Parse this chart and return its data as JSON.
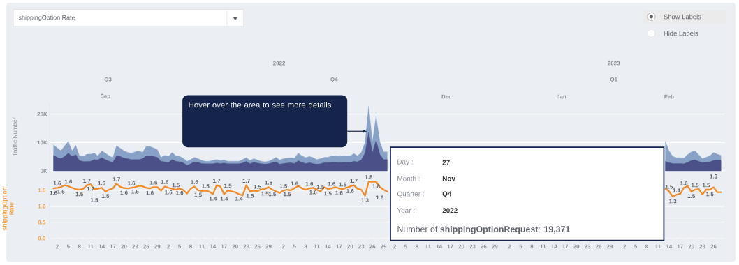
{
  "chart_data": [
    {
      "type": "area",
      "ylabel": "Traffic Number",
      "x": [
        "2022-09-01",
        "2022-09-02",
        "2022-09-03",
        "2022-09-04",
        "2022-09-05",
        "2022-09-06",
        "2022-09-07",
        "2022-09-08",
        "2022-09-09",
        "2022-09-10",
        "2022-09-11",
        "2022-09-12",
        "2022-09-13",
        "2022-09-14",
        "2022-09-15",
        "2022-09-16",
        "2022-09-17",
        "2022-09-18",
        "2022-09-19",
        "2022-09-20",
        "2022-09-21",
        "2022-09-22",
        "2022-09-23",
        "2022-09-24",
        "2022-09-25",
        "2022-09-26",
        "2022-09-27",
        "2022-09-28",
        "2022-09-29",
        "2022-09-30",
        "2022-10-01",
        "2022-10-02",
        "2022-10-03",
        "2022-10-04",
        "2022-10-05",
        "2022-10-06",
        "2022-10-07",
        "2022-10-08",
        "2022-10-09",
        "2022-10-10",
        "2022-10-11",
        "2022-10-12",
        "2022-10-13",
        "2022-10-14",
        "2022-10-15",
        "2022-10-16",
        "2022-10-17",
        "2022-10-18",
        "2022-10-19",
        "2022-10-20",
        "2022-10-21",
        "2022-10-22",
        "2022-10-23",
        "2022-10-24",
        "2022-10-25",
        "2022-10-26",
        "2022-10-27",
        "2022-10-28",
        "2022-10-29",
        "2022-10-30",
        "2022-10-31",
        "2022-11-01",
        "2022-11-02",
        "2022-11-03",
        "2022-11-04",
        "2022-11-05",
        "2022-11-06",
        "2022-11-07",
        "2022-11-08",
        "2022-11-09",
        "2022-11-10",
        "2022-11-11",
        "2022-11-12",
        "2022-11-13",
        "2022-11-14",
        "2022-11-15",
        "2022-11-16",
        "2022-11-17",
        "2022-11-18",
        "2022-11-19",
        "2022-11-20",
        "2022-11-21",
        "2022-11-22",
        "2022-11-23",
        "2022-11-24",
        "2022-11-25",
        "2022-11-26",
        "2022-11-27",
        "2022-11-28",
        "2022-11-29",
        "2022-11-30",
        "2022-12-01",
        "2023-02-13",
        "2023-02-14",
        "2023-02-15",
        "2023-02-16",
        "2023-02-17",
        "2023-02-18",
        "2023-02-19",
        "2023-02-20",
        "2023-02-21",
        "2023-02-22",
        "2023-02-23",
        "2023-02-24",
        "2023-02-25",
        "2023-02-26",
        "2023-02-27",
        "2023-02-28"
      ],
      "series": [
        {
          "color": "#87a2c6",
          "values": [
            9200,
            8100,
            7100,
            8800,
            10400,
            7100,
            9000,
            5300,
            5100,
            5900,
            5900,
            6300,
            5300,
            7100,
            6300,
            5300,
            4700,
            8900,
            8000,
            7100,
            6500,
            6300,
            6700,
            7100,
            6500,
            8600,
            8600,
            8100,
            7500,
            4800,
            5500,
            5100,
            6500,
            5300,
            5100,
            4500,
            3400,
            4000,
            4800,
            4300,
            3700,
            3400,
            3400,
            3700,
            4000,
            3700,
            3900,
            3400,
            3400,
            3400,
            3400,
            4000,
            4700,
            3700,
            4300,
            3900,
            3400,
            3200,
            3400,
            4000,
            4800,
            3900,
            4300,
            4500,
            4700,
            4500,
            6300,
            5300,
            4700,
            5100,
            4700,
            4000,
            4300,
            4800,
            4800,
            5300,
            5300,
            5100,
            5300,
            5300,
            5300,
            6100,
            5300,
            6500,
            10000,
            22900,
            10400,
            19371,
            10400,
            6700,
            6700,
            null,
            10400,
            7100,
            5100,
            4700,
            4700,
            4500,
            5700,
            6700,
            7100,
            5700,
            4300,
            4800,
            5300,
            6500,
            5900,
            5500
          ]
        },
        {
          "color": "#4b5088",
          "values": [
            5500,
            4800,
            4300,
            5100,
            6300,
            5100,
            5700,
            3700,
            3300,
            3300,
            3400,
            4000,
            3900,
            4700,
            4000,
            3400,
            3000,
            5300,
            5100,
            4500,
            4300,
            4000,
            4000,
            4000,
            4300,
            5300,
            5300,
            5100,
            4800,
            3400,
            3200,
            3000,
            4000,
            3400,
            3200,
            2900,
            2000,
            2500,
            3200,
            3000,
            2600,
            2500,
            2500,
            2500,
            2800,
            2600,
            2800,
            2500,
            2500,
            2500,
            2500,
            2800,
            3400,
            2500,
            3000,
            2800,
            2500,
            2400,
            2500,
            2900,
            3200,
            2400,
            2600,
            2800,
            2900,
            2600,
            3600,
            3000,
            2600,
            2900,
            2600,
            2400,
            2500,
            2900,
            2900,
            3000,
            3000,
            2900,
            3000,
            3000,
            3000,
            3400,
            3200,
            3900,
            6300,
            13700,
            6500,
            10800,
            5900,
            4000,
            4000,
            null,
            3400,
            2900,
            2600,
            2600,
            2600,
            2500,
            3000,
            3700,
            3900,
            3400,
            2900,
            3000,
            3200,
            3700,
            3700,
            3700
          ]
        }
      ],
      "xlim": [
        "2022-08-31",
        "2023-03-01"
      ],
      "ylim": [
        0,
        24000
      ],
      "yticks": [
        {
          "value": 0,
          "label": "0K"
        },
        {
          "value": 10000,
          "label": "10K"
        },
        {
          "value": 20000,
          "label": "20K"
        }
      ],
      "grid": "y",
      "tick_labels": "y",
      "x2lim": [
        "2022-08-31",
        "2023-03-01"
      ],
      "x2ticks": [
        {
          "value": "2022-09-15",
          "label": "Sep"
        },
        {
          "value": "2022-12-16",
          "label": "Dec"
        },
        {
          "value": "2023-01-16",
          "label": "Jan"
        },
        {
          "value": "2023-02-14",
          "label": "Feb"
        }
      ],
      "annotations": [
        "shippingOption Rate",
        "Show Labels",
        "Hide Labels",
        "Hover over the area to see more details",
        "Day :",
        "27",
        "Month :",
        "Nov",
        "Quarter :",
        "Q4",
        "Year :",
        "2022",
        "Number of **shippingOptionRequest**: **19,371**",
        "Q3",
        "Q4",
        "Q1",
        "2022",
        "2023"
      ]
    },
    {
      "type": "line",
      "ylabel": "shippingOption Rate",
      "color": "#f28c28",
      "x": [
        "2022-09-01",
        "2022-09-02",
        "2022-09-03",
        "2022-09-04",
        "2022-09-05",
        "2022-09-06",
        "2022-09-07",
        "2022-09-08",
        "2022-09-09",
        "2022-09-10",
        "2022-09-11",
        "2022-09-12",
        "2022-09-13",
        "2022-09-14",
        "2022-09-15",
        "2022-09-16",
        "2022-09-17",
        "2022-09-18",
        "2022-09-19",
        "2022-09-20",
        "2022-09-21",
        "2022-09-22",
        "2022-09-23",
        "2022-09-24",
        "2022-09-25",
        "2022-09-26",
        "2022-09-27",
        "2022-09-28",
        "2022-09-29",
        "2022-09-30",
        "2022-10-01",
        "2022-10-02",
        "2022-10-03",
        "2022-10-04",
        "2022-10-05",
        "2022-10-06",
        "2022-10-07",
        "2022-10-08",
        "2022-10-09",
        "2022-10-10",
        "2022-10-11",
        "2022-10-12",
        "2022-10-13",
        "2022-10-14",
        "2022-10-15",
        "2022-10-16",
        "2022-10-17",
        "2022-10-18",
        "2022-10-19",
        "2022-10-20",
        "2022-10-21",
        "2022-10-22",
        "2022-10-23",
        "2022-10-24",
        "2022-10-25",
        "2022-10-26",
        "2022-10-27",
        "2022-10-28",
        "2022-10-29",
        "2022-10-30",
        "2022-10-31",
        "2022-11-01",
        "2022-11-02",
        "2022-11-03",
        "2022-11-04",
        "2022-11-05",
        "2022-11-06",
        "2022-11-07",
        "2022-11-08",
        "2022-11-09",
        "2022-11-10",
        "2022-11-11",
        "2022-11-12",
        "2022-11-13",
        "2022-11-14",
        "2022-11-15",
        "2022-11-16",
        "2022-11-17",
        "2022-11-18",
        "2022-11-19",
        "2022-11-20",
        "2022-11-21",
        "2022-11-22",
        "2022-11-23",
        "2022-11-24",
        "2022-11-25",
        "2022-11-26",
        "2022-11-27",
        "2022-11-28",
        "2022-11-29",
        "2022-11-30",
        "2022-12-01",
        "2023-02-13",
        "2023-02-14",
        "2023-02-15",
        "2023-02-16",
        "2023-02-17",
        "2023-02-18",
        "2023-02-19",
        "2023-02-20",
        "2023-02-21",
        "2023-02-22",
        "2023-02-23",
        "2023-02-24",
        "2023-02-25",
        "2023-02-26",
        "2023-02-27",
        "2023-02-28"
      ],
      "values": [
        1.56,
        1.58,
        1.6,
        1.66,
        1.63,
        1.58,
        1.54,
        1.52,
        1.55,
        1.66,
        1.69,
        1.53,
        1.55,
        1.58,
        1.46,
        1.52,
        1.56,
        1.71,
        1.61,
        1.57,
        1.56,
        1.58,
        1.6,
        1.64,
        1.63,
        1.58,
        1.56,
        1.6,
        1.6,
        1.49,
        1.62,
        1.58,
        1.55,
        1.52,
        1.56,
        1.51,
        1.4,
        1.55,
        1.62,
        1.5,
        1.48,
        1.49,
        1.46,
        1.38,
        1.66,
        1.62,
        1.38,
        1.5,
        1.47,
        1.44,
        1.38,
        1.34,
        1.66,
        1.47,
        1.49,
        1.47,
        1.53,
        1.54,
        1.6,
        1.52,
        1.47,
        1.42,
        1.49,
        1.52,
        1.5,
        1.57,
        1.64,
        1.56,
        1.52,
        1.56,
        1.58,
        1.52,
        1.46,
        1.6,
        1.54,
        1.56,
        1.6,
        1.56,
        1.54,
        1.58,
        1.62,
        1.66,
        1.55,
        1.52,
        1.33,
        1.77,
        1.77,
        1.77,
        1.61,
        1.52,
        1.46,
        null,
        1.55,
        1.47,
        1.3,
        1.36,
        1.39,
        1.58,
        1.63,
        1.46,
        1.52,
        1.54,
        1.37,
        1.52,
        1.52,
        1.6,
        1.44,
        1.44
      ],
      "value_labels": [
        "1.6",
        "1.6",
        "1.6",
        null,
        "1.6",
        null,
        null,
        "1.5",
        null,
        "1.7",
        "1.7",
        "1.5",
        null,
        "1.6",
        "1.5",
        null,
        null,
        "1.7",
        null,
        "1.6",
        null,
        "1.6",
        "1.6",
        null,
        null,
        null,
        "1.6",
        "1.6",
        null,
        null,
        "1.6",
        "1.6",
        null,
        "1.5",
        "1.6",
        null,
        null,
        null,
        "1.6",
        "1.5",
        null,
        "1.5",
        null,
        "1.4",
        "1.7",
        null,
        "1.4",
        "1.5",
        null,
        null,
        "1.4",
        null,
        "1.7",
        "1.5",
        null,
        "1.5",
        null,
        "1.5",
        "1.6",
        "1.5",
        null,
        null,
        "1.5",
        "1.5",
        null,
        "1.6",
        null,
        null,
        null,
        "1.6",
        "1.6",
        null,
        "1.5",
        null,
        "1.5",
        "1.6",
        null,
        "1.6",
        "1.5",
        null,
        "1.6",
        "1.7",
        null,
        null,
        "1.3",
        "1.8",
        null,
        "1.8",
        "1.6",
        null,
        null,
        null,
        null,
        "1.5",
        "1.3",
        "1.4",
        null,
        "1.6",
        null,
        "1.5",
        "1.5",
        null,
        null,
        "1.5",
        "1.5",
        "1.6",
        null,
        null
      ],
      "xlim": [
        "2022-08-31",
        "2023-03-01"
      ],
      "ylim": [
        0,
        1.85
      ],
      "xticks": [
        {
          "value": "2022-09-02",
          "label": "2"
        },
        {
          "value": "2022-09-05",
          "label": "5"
        },
        {
          "value": "2022-09-08",
          "label": "8"
        },
        {
          "value": "2022-09-11",
          "label": "11"
        },
        {
          "value": "2022-09-14",
          "label": "14"
        },
        {
          "value": "2022-09-17",
          "label": "17"
        },
        {
          "value": "2022-09-20",
          "label": "20"
        },
        {
          "value": "2022-09-23",
          "label": "23"
        },
        {
          "value": "2022-09-26",
          "label": "26"
        },
        {
          "value": "2022-09-29",
          "label": "29"
        },
        {
          "value": "2022-10-02",
          "label": "2"
        },
        {
          "value": "2022-10-05",
          "label": "5"
        },
        {
          "value": "2022-10-08",
          "label": "8"
        },
        {
          "value": "2022-10-11",
          "label": "11"
        },
        {
          "value": "2022-10-14",
          "label": "14"
        },
        {
          "value": "2022-10-17",
          "label": "17"
        },
        {
          "value": "2022-10-20",
          "label": "20"
        },
        {
          "value": "2022-10-23",
          "label": "23"
        },
        {
          "value": "2022-10-26",
          "label": "26"
        },
        {
          "value": "2022-10-29",
          "label": "29"
        },
        {
          "value": "2022-11-02",
          "label": "2"
        },
        {
          "value": "2022-11-05",
          "label": "5"
        },
        {
          "value": "2022-11-08",
          "label": "8"
        },
        {
          "value": "2022-11-11",
          "label": "11"
        },
        {
          "value": "2022-11-14",
          "label": "14"
        },
        {
          "value": "2022-11-17",
          "label": "17"
        },
        {
          "value": "2022-11-20",
          "label": "20"
        },
        {
          "value": "2022-11-23",
          "label": "23"
        },
        {
          "value": "2022-11-26",
          "label": "26"
        },
        {
          "value": "2022-11-29",
          "label": "29"
        },
        {
          "value": "2022-12-02",
          "label": "2"
        },
        {
          "value": "2022-12-05",
          "label": "5"
        },
        {
          "value": "2022-12-08",
          "label": "8"
        },
        {
          "value": "2022-12-11",
          "label": "11"
        },
        {
          "value": "2022-12-14",
          "label": "14"
        },
        {
          "value": "2022-12-17",
          "label": "17"
        },
        {
          "value": "2022-12-20",
          "label": "20"
        },
        {
          "value": "2022-12-23",
          "label": "23"
        },
        {
          "value": "2022-12-26",
          "label": "26"
        },
        {
          "value": "2022-12-29",
          "label": "29"
        },
        {
          "value": "2023-01-02",
          "label": "2"
        },
        {
          "value": "2023-01-05",
          "label": "5"
        },
        {
          "value": "2023-01-08",
          "label": "8"
        },
        {
          "value": "2023-01-11",
          "label": "11"
        },
        {
          "value": "2023-01-14",
          "label": "14"
        },
        {
          "value": "2023-01-17",
          "label": "17"
        },
        {
          "value": "2023-01-20",
          "label": "20"
        },
        {
          "value": "2023-01-23",
          "label": "23"
        },
        {
          "value": "2023-01-26",
          "label": "26"
        },
        {
          "value": "2023-01-29",
          "label": "29"
        },
        {
          "value": "2023-02-02",
          "label": "2"
        },
        {
          "value": "2023-02-05",
          "label": "5"
        },
        {
          "value": "2023-02-08",
          "label": "8"
        },
        {
          "value": "2023-02-11",
          "label": "11"
        },
        {
          "value": "2023-02-14",
          "label": "14"
        },
        {
          "value": "2023-02-17",
          "label": "17"
        },
        {
          "value": "2023-02-20",
          "label": "20"
        },
        {
          "value": "2023-02-23",
          "label": "23"
        },
        {
          "value": "2023-02-26",
          "label": "26"
        }
      ],
      "yticks": [
        {
          "value": 0,
          "label": "0.0"
        },
        0.5,
        {
          "value": 1,
          "label": "1.0"
        },
        1.5
      ],
      "grid": "y"
    }
  ]
}
